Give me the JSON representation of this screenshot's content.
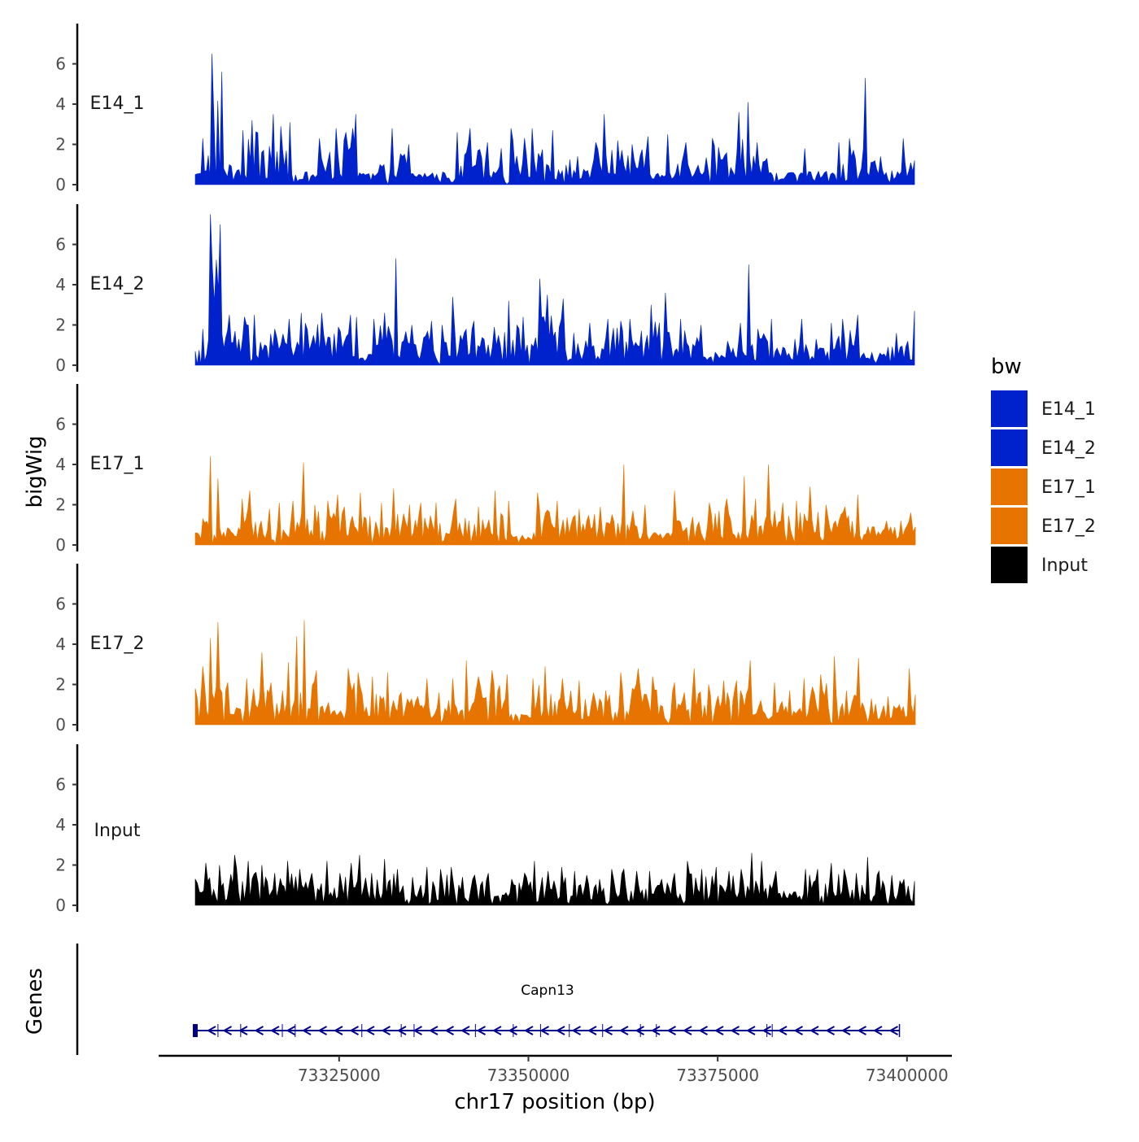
{
  "chart_data": {
    "type": "area",
    "chromosome": "chr17",
    "xlabel": "chr17 position (bp)",
    "ylabel": "bigWig",
    "genes_track_label": "Genes",
    "xlim": [
      73302000,
      73402000
    ],
    "x_ticks": [
      73325000,
      73350000,
      73375000,
      73400000
    ],
    "x_tick_labels": [
      "73325000",
      "73350000",
      "73375000",
      "73400000"
    ],
    "data_range": [
      73306000,
      73401200
    ],
    "ylim": [
      0,
      8
    ],
    "y_ticks": [
      0,
      2,
      4,
      6
    ],
    "y_tick_labels": [
      "0",
      "2",
      "4",
      "6"
    ],
    "legend": {
      "title": "bw",
      "position": "right",
      "entries": [
        {
          "label": "E14_1",
          "color": "#0022cc"
        },
        {
          "label": "E14_2",
          "color": "#0022cc"
        },
        {
          "label": "E17_1",
          "color": "#e87400"
        },
        {
          "label": "E17_2",
          "color": "#e87400"
        },
        {
          "label": "Input",
          "color": "#000000"
        }
      ]
    },
    "series": [
      {
        "name": "E14_1",
        "color": "#0022cc",
        "peaks": [
          [
            73306000,
            0.5
          ],
          [
            73307000,
            2.3
          ],
          [
            73308200,
            6.5
          ],
          [
            73309500,
            5.6
          ],
          [
            73310500,
            1.0
          ],
          [
            73312300,
            2.7
          ],
          [
            73313500,
            3.2
          ],
          [
            73316300,
            3.5
          ],
          [
            73317300,
            2.9
          ],
          [
            73318500,
            3.1
          ],
          [
            73321000,
            0.1
          ],
          [
            73322400,
            2.3
          ],
          [
            73324600,
            2.8
          ],
          [
            73325900,
            2.6
          ],
          [
            73326800,
            2.8
          ],
          [
            73327200,
            3.5
          ],
          [
            73329200,
            0.2
          ],
          [
            73330400,
            1.0
          ],
          [
            73332000,
            2.8
          ],
          [
            73334200,
            2.0
          ],
          [
            73338400,
            0.1
          ],
          [
            73340600,
            2.6
          ],
          [
            73342300,
            2.8
          ],
          [
            73344600,
            2.1
          ],
          [
            73347700,
            2.8
          ],
          [
            73350500,
            2.8
          ],
          [
            73353200,
            2.7
          ],
          [
            73356500,
            1.4
          ],
          [
            73358900,
            2.1
          ],
          [
            73360000,
            3.5
          ],
          [
            73361800,
            2.2
          ],
          [
            73363700,
            2.0
          ],
          [
            73365800,
            2.4
          ],
          [
            73366600,
            0.3
          ],
          [
            73368400,
            2.5
          ],
          [
            73370800,
            2.1
          ],
          [
            73374300,
            2.3
          ],
          [
            73377800,
            3.6
          ],
          [
            73379000,
            4.1
          ],
          [
            73380200,
            2.1
          ],
          [
            73381500,
            1.3
          ],
          [
            73383000,
            0.2
          ],
          [
            73385000,
            0.6
          ],
          [
            73386500,
            1.8
          ],
          [
            73389100,
            0.6
          ],
          [
            73391000,
            2.1
          ],
          [
            73392400,
            2.3
          ],
          [
            73394500,
            5.3
          ],
          [
            73396500,
            1.4
          ],
          [
            73398000,
            0.7
          ],
          [
            73399500,
            2.3
          ],
          [
            73401000,
            1.2
          ]
        ]
      },
      {
        "name": "E14_2",
        "color": "#0022cc",
        "peaks": [
          [
            73306000,
            0.7
          ],
          [
            73307000,
            1.8
          ],
          [
            73308000,
            7.5
          ],
          [
            73309300,
            7.0
          ],
          [
            73310500,
            2.5
          ],
          [
            73312500,
            2.4
          ],
          [
            73313800,
            2.5
          ],
          [
            73316500,
            1.8
          ],
          [
            73318400,
            2.3
          ],
          [
            73320000,
            2.6
          ],
          [
            73322700,
            2.6
          ],
          [
            73324900,
            1.9
          ],
          [
            73326500,
            2.5
          ],
          [
            73327300,
            2.4
          ],
          [
            73328400,
            0.2
          ],
          [
            73329600,
            2.3
          ],
          [
            73331000,
            2.6
          ],
          [
            73332500,
            5.3
          ],
          [
            73334600,
            2.0
          ],
          [
            73337200,
            2.2
          ],
          [
            73338600,
            2.0
          ],
          [
            73340000,
            3.4
          ],
          [
            73342800,
            2.2
          ],
          [
            73345500,
            1.9
          ],
          [
            73347400,
            3.2
          ],
          [
            73349300,
            2.4
          ],
          [
            73351500,
            4.3
          ],
          [
            73352500,
            3.5
          ],
          [
            73354600,
            3.3
          ],
          [
            73356000,
            1.6
          ],
          [
            73358100,
            2.1
          ],
          [
            73360500,
            2.3
          ],
          [
            73362200,
            2.2
          ],
          [
            73363400,
            2.3
          ],
          [
            73366200,
            3.0
          ],
          [
            73368100,
            3.6
          ],
          [
            73370100,
            2.3
          ],
          [
            73372800,
            2.0
          ],
          [
            73374400,
            0.1
          ],
          [
            73376300,
            1.2
          ],
          [
            73378000,
            2.1
          ],
          [
            73379100,
            5.0
          ],
          [
            73380300,
            1.8
          ],
          [
            73382100,
            2.3
          ],
          [
            73383600,
            0.9
          ],
          [
            73385200,
            1.3
          ],
          [
            73386100,
            2.3
          ],
          [
            73388000,
            1.3
          ],
          [
            73390000,
            2.1
          ],
          [
            73391500,
            2.3
          ],
          [
            73393500,
            2.5
          ],
          [
            73395900,
            0.1
          ],
          [
            73397500,
            0.9
          ],
          [
            73398600,
            1.6
          ],
          [
            73400100,
            1.2
          ],
          [
            73401000,
            2.7
          ]
        ]
      },
      {
        "name": "E17_1",
        "color": "#e87400",
        "peaks": [
          [
            73306000,
            0.6
          ],
          [
            73307000,
            1.3
          ],
          [
            73308000,
            4.4
          ],
          [
            73309000,
            3.3
          ],
          [
            73310500,
            0.8
          ],
          [
            73312200,
            2.3
          ],
          [
            73313200,
            2.7
          ],
          [
            73314700,
            1.2
          ],
          [
            73315800,
            1.8
          ],
          [
            73317100,
            2.1
          ],
          [
            73318900,
            2.2
          ],
          [
            73320300,
            4.1
          ],
          [
            73321800,
            2.0
          ],
          [
            73323500,
            2.2
          ],
          [
            73324800,
            2.5
          ],
          [
            73325700,
            1.9
          ],
          [
            73327800,
            2.6
          ],
          [
            73330600,
            2.1
          ],
          [
            73332200,
            2.8
          ],
          [
            73334300,
            2.0
          ],
          [
            73335800,
            2.1
          ],
          [
            73337800,
            2.1
          ],
          [
            73340400,
            2.3
          ],
          [
            73343400,
            1.9
          ],
          [
            73345600,
            2.7
          ],
          [
            73347400,
            2.2
          ],
          [
            73348700,
            0.1
          ],
          [
            73351200,
            2.6
          ],
          [
            73353800,
            2.2
          ],
          [
            73356700,
            1.8
          ],
          [
            73359500,
            1.9
          ],
          [
            73362600,
            4.0
          ],
          [
            73363800,
            1.7
          ],
          [
            73365400,
            2.0
          ],
          [
            73367700,
            0.3
          ],
          [
            73369300,
            2.7
          ],
          [
            73371700,
            1.4
          ],
          [
            73373900,
            2.1
          ],
          [
            73376200,
            2.3
          ],
          [
            73378500,
            3.4
          ],
          [
            73380000,
            2.3
          ],
          [
            73381700,
            4.0
          ],
          [
            73383600,
            2.1
          ],
          [
            73385400,
            2.2
          ],
          [
            73387200,
            2.9
          ],
          [
            73389300,
            2.0
          ],
          [
            73391800,
            1.9
          ],
          [
            73393500,
            2.5
          ],
          [
            73395400,
            0.9
          ],
          [
            73397300,
            1.2
          ],
          [
            73399200,
            1.2
          ],
          [
            73400500,
            1.6
          ],
          [
            73401100,
            0.9
          ]
        ]
      },
      {
        "name": "E17_2",
        "color": "#e87400",
        "peaks": [
          [
            73306000,
            1.8
          ],
          [
            73307000,
            2.9
          ],
          [
            73308000,
            4.3
          ],
          [
            73309000,
            5.1
          ],
          [
            73310300,
            2.1
          ],
          [
            73311700,
            0.8
          ],
          [
            73312800,
            2.3
          ],
          [
            73313700,
            1.8
          ],
          [
            73314800,
            3.6
          ],
          [
            73316000,
            2.1
          ],
          [
            73318300,
            3.1
          ],
          [
            73319400,
            4.4
          ],
          [
            73320400,
            5.2
          ],
          [
            73322000,
            2.7
          ],
          [
            73323600,
            1.1
          ],
          [
            73325200,
            0.7
          ],
          [
            73326200,
            2.8
          ],
          [
            73327500,
            2.6
          ],
          [
            73329400,
            2.4
          ],
          [
            73331400,
            2.6
          ],
          [
            73333200,
            1.6
          ],
          [
            73335400,
            1.4
          ],
          [
            73336600,
            2.3
          ],
          [
            73338200,
            1.6
          ],
          [
            73340000,
            2.3
          ],
          [
            73341800,
            3.2
          ],
          [
            73343400,
            2.4
          ],
          [
            73345200,
            2.7
          ],
          [
            73347200,
            2.5
          ],
          [
            73348800,
            0.1
          ],
          [
            73350600,
            2.3
          ],
          [
            73352200,
            2.9
          ],
          [
            73354500,
            2.3
          ],
          [
            73356700,
            2.2
          ],
          [
            73358600,
            1.6
          ],
          [
            73360200,
            1.7
          ],
          [
            73362200,
            2.6
          ],
          [
            73364500,
            2.8
          ],
          [
            73366400,
            2.4
          ],
          [
            73369300,
            2.1
          ],
          [
            73371900,
            2.8
          ],
          [
            73373800,
            2.0
          ],
          [
            73375800,
            2.2
          ],
          [
            73377500,
            2.2
          ],
          [
            73379300,
            3.2
          ],
          [
            73380700,
            1.2
          ],
          [
            73382500,
            2.1
          ],
          [
            73384500,
            1.7
          ],
          [
            73386400,
            2.3
          ],
          [
            73388600,
            2.5
          ],
          [
            73390400,
            3.4
          ],
          [
            73392000,
            1.7
          ],
          [
            73393600,
            3.3
          ],
          [
            73395300,
            1.3
          ],
          [
            73397500,
            1.4
          ],
          [
            73399000,
            1.0
          ],
          [
            73400300,
            2.8
          ],
          [
            73401100,
            1.5
          ]
        ]
      },
      {
        "name": "Input",
        "color": "#000000",
        "peaks": [
          [
            73306000,
            1.3
          ],
          [
            73307400,
            2.1
          ],
          [
            73309200,
            2.0
          ],
          [
            73311200,
            2.5
          ],
          [
            73313000,
            2.2
          ],
          [
            73314800,
            2.0
          ],
          [
            73316500,
            1.6
          ],
          [
            73318200,
            2.2
          ],
          [
            73319800,
            1.8
          ],
          [
            73321400,
            1.6
          ],
          [
            73323400,
            2.2
          ],
          [
            73325100,
            1.6
          ],
          [
            73326600,
            2.1
          ],
          [
            73327700,
            2.5
          ],
          [
            73329300,
            1.6
          ],
          [
            73331000,
            2.3
          ],
          [
            73332700,
            1.8
          ],
          [
            73334700,
            1.4
          ],
          [
            73336600,
            1.9
          ],
          [
            73338400,
            1.8
          ],
          [
            73339800,
            1.9
          ],
          [
            73341300,
            1.4
          ],
          [
            73342900,
            1.5
          ],
          [
            73344700,
            1.6
          ],
          [
            73346300,
            0.1
          ],
          [
            73347800,
            1.3
          ],
          [
            73349500,
            1.6
          ],
          [
            73350800,
            2.2
          ],
          [
            73352600,
            1.7
          ],
          [
            73354400,
            1.9
          ],
          [
            73356100,
            1.7
          ],
          [
            73357700,
            1.5
          ],
          [
            73359400,
            1.3
          ],
          [
            73361000,
            1.8
          ],
          [
            73362600,
            1.8
          ],
          [
            73364300,
            1.7
          ],
          [
            73366000,
            1.7
          ],
          [
            73367600,
            1.3
          ],
          [
            73369300,
            1.6
          ],
          [
            73371000,
            2.2
          ],
          [
            73372900,
            1.8
          ],
          [
            73374800,
            1.9
          ],
          [
            73376500,
            1.7
          ],
          [
            73378100,
            1.8
          ],
          [
            73379500,
            2.6
          ],
          [
            73380800,
            2.2
          ],
          [
            73382700,
            1.7
          ],
          [
            73384500,
            0.6
          ],
          [
            73386600,
            1.8
          ],
          [
            73388200,
            1.8
          ],
          [
            73390000,
            2.1
          ],
          [
            73391700,
            1.8
          ],
          [
            73393300,
            1.6
          ],
          [
            73394800,
            2.4
          ],
          [
            73396300,
            1.7
          ],
          [
            73398000,
            1.5
          ],
          [
            73399600,
            1.3
          ],
          [
            73401000,
            1.2
          ]
        ]
      }
    ],
    "gene": {
      "name": "Capn13",
      "start": 73306000,
      "end": 73399000,
      "strand": "-",
      "color": "#00008b"
    }
  }
}
